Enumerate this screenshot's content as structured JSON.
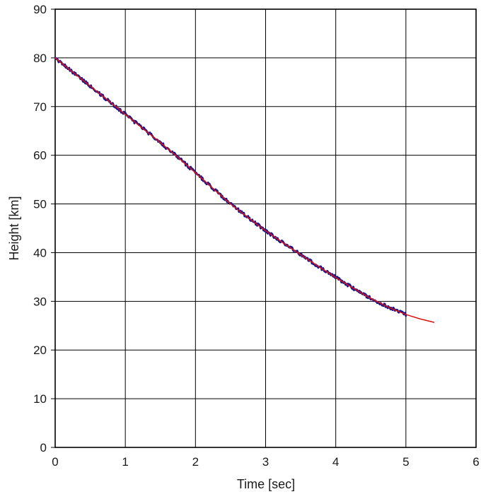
{
  "chart_data": {
    "type": "line",
    "title": "",
    "xlabel": "Time [sec]",
    "ylabel": "Height [km]",
    "xlim": [
      0,
      6
    ],
    "ylim": [
      0,
      90
    ],
    "xticks": [
      0,
      1,
      2,
      3,
      4,
      5,
      6
    ],
    "yticks": [
      0,
      10,
      20,
      30,
      40,
      50,
      60,
      70,
      80,
      90
    ],
    "grid": true,
    "legend_position": "none",
    "colors": {
      "grid": "#000000",
      "border": "#000000",
      "measured": "#16168c",
      "fit": "#dd1111",
      "background": "#ffffff"
    },
    "series": [
      {
        "name": "measured",
        "style": "noisy",
        "color": "#16168c",
        "stroke_width": 2.8,
        "x_start": 0,
        "x_end": 5.0,
        "x_step": 0.01,
        "noise_amplitude": 0.33,
        "seed": 42,
        "base": "fit"
      },
      {
        "name": "fit",
        "style": "smooth",
        "color": "#dd1111",
        "stroke_width": 1.5,
        "x": [
          0,
          0.25,
          0.5,
          0.75,
          1.0,
          1.25,
          1.5,
          1.75,
          2.0,
          2.25,
          2.5,
          2.75,
          3.0,
          3.25,
          3.5,
          3.75,
          4.0,
          4.25,
          4.5,
          4.75,
          5.0,
          5.2,
          5.4
        ],
        "y": [
          80.0,
          77.1,
          74.2,
          71.3,
          68.4,
          65.5,
          62.6,
          59.6,
          56.4,
          53.2,
          50.0,
          47.2,
          44.5,
          42.0,
          39.6,
          37.2,
          34.9,
          32.7,
          30.6,
          28.8,
          27.3,
          26.4,
          25.7
        ]
      }
    ]
  }
}
